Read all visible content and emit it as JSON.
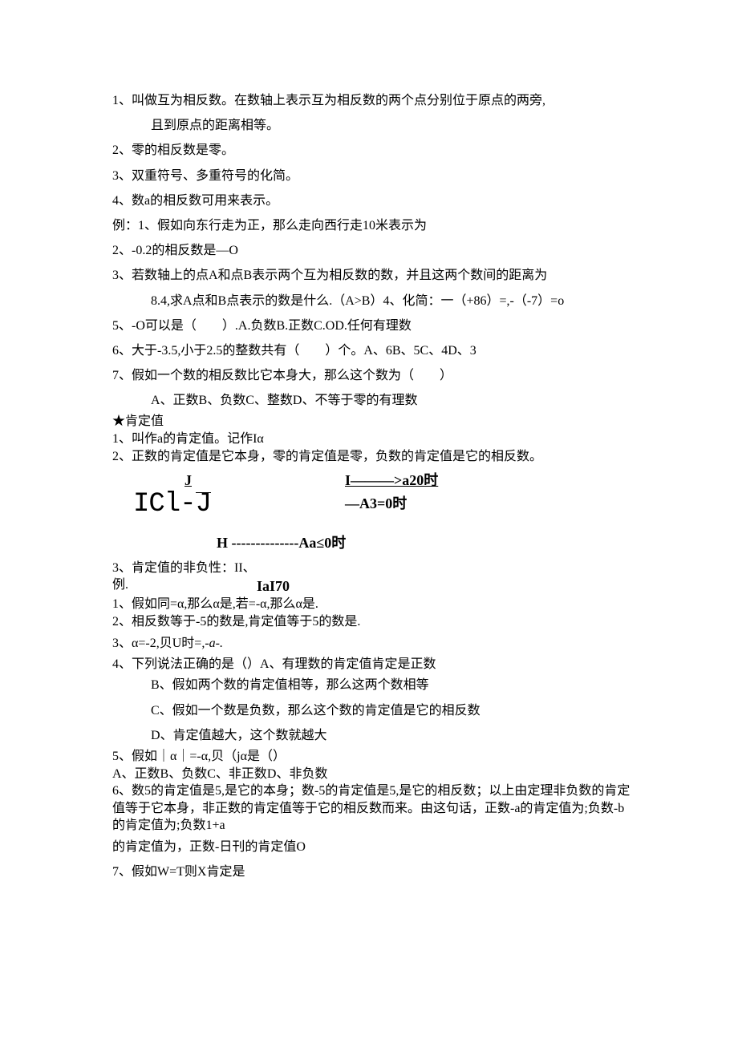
{
  "p1": "1、叫做互为相反数。在数轴上表示互为相反数的两个点分别位于原点的两旁,",
  "p1b": "且到原点的距离相等。",
  "p2": "2、零的相反数是零。",
  "p3": "3、双重符号、多重符号的化简。",
  "p4": "4、数a的相反数可用来表示。",
  "p5": "例：1、假如向东行走为正，那么走向西行走10米表示为",
  "p6": "2、-0.2的相反数是—O",
  "p7": "3、若数轴上的点A和点B表示两个互为相反数的数，并且这两个数间的距离为",
  "p7b": "8.4,求A点和B点表示的数是什么.（A>B）4、化简：一（+86）=,-（-7）=o",
  "p8": "5、-O可以是（　　）.A.负数B.正数C.OD.任何有理数",
  "p9": "6、大于-3.5,小于2.5的整数共有（　　）个。A、6B、5C、4D、3",
  "p10": "7、假如一个数的相反数比它本身大，那么这个数为（　　）",
  "p10b": "A、正数B、负数C、整数D、不等于零的有理数",
  "h1": "★肯定值",
  "p11": "1、叫作a的肯定值。记作Iα",
  "p12": "2、正数的肯定值是它本身，零的肯定值是零，负数的肯定值是它的相反数。",
  "formula": {
    "r1_left_J": "J",
    "r1_left_I": "I———>a20时",
    "r2_left": "ICl-",
    "r2_J": "J",
    "r2_right": "—A3=0时",
    "r3": "H --------------Aa≤0时"
  },
  "p13": "3、肯定值的非负性：II、",
  "ex_label": "例.",
  "ex_val": "IaI70",
  "q1": "1、假如同=α,那么α是,若=-α,那么α是.",
  "q2": "2、相反数等于-5的数是,肯定值等于5的数是.",
  "q3a": "3、α=-2,贝U时=",
  "q3b": ",-a-.",
  "q4": "4、下列说法正确的是（）A、有理数的肯定值肯定是正数",
  "q4b": "B、假如两个数的肯定值相等，那么这两个数相等",
  "q4c": "C、假如一个数是负数，那么这个数的肯定值是它的相反数",
  "q4d": "D、肯定值越大，这个数就越大",
  "q5": "5、假如｜α｜=-α,贝（jα是（）",
  "q5b": "A、正数B、负数C、非正数D、非负数",
  "q6": "6、数5的肯定值是5,是它的本身；数-5的肯定值是5,是它的相反数；以上由定理非负数的肯定值等于它本身，非正数的肯定值等于它的相反数而来。由这句话，正数-a的肯定值为;负数-b的肯定值为;负数1+a",
  "q6b": "的肯定值为，正数-日刊的肯定值O",
  "q7": "7、假如W=T则X肯定是"
}
